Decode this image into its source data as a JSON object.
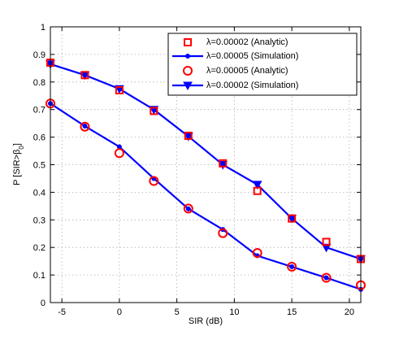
{
  "chart_data": {
    "type": "line",
    "xlabel": "SIR (dB)",
    "ylabel": "P [SIR>β₀]",
    "xlim": [
      -6,
      21
    ],
    "ylim": [
      0,
      1
    ],
    "x_ticks": [
      -5,
      0,
      5,
      10,
      15,
      20
    ],
    "y_ticks": [
      0,
      0.1,
      0.2,
      0.3,
      0.4,
      0.5,
      0.6,
      0.7,
      0.8,
      0.9,
      1
    ],
    "grid": true,
    "legend_position": "top-right",
    "series": [
      {
        "name": "λ=0.00002 (Analytic)",
        "style": "square-markers",
        "color": "#ff0000",
        "x": [
          -6,
          -3,
          0,
          3,
          6,
          9,
          12,
          15,
          18,
          21
        ],
        "y": [
          0.87,
          0.825,
          0.77,
          0.695,
          0.605,
          0.505,
          0.405,
          0.305,
          0.22,
          0.158
        ]
      },
      {
        "name": "λ=0.00005 (Simulation)",
        "style": "line-dot",
        "color": "#0000ff",
        "x": [
          -6,
          -3,
          0,
          3,
          6,
          9,
          12,
          15,
          18,
          21
        ],
        "y": [
          0.722,
          0.64,
          0.565,
          0.45,
          0.34,
          0.265,
          0.17,
          0.13,
          0.09,
          0.048
        ]
      },
      {
        "name": "λ=0.00005 (Analytic)",
        "style": "circle-markers",
        "color": "#ff0000",
        "x": [
          -6,
          -3,
          0,
          3,
          6,
          9,
          12,
          15,
          18,
          21
        ],
        "y": [
          0.722,
          0.638,
          0.542,
          0.441,
          0.341,
          0.252,
          0.18,
          0.13,
          0.09,
          0.063
        ]
      },
      {
        "name": "λ=0.00002 (Simulation)",
        "style": "line-triangle",
        "color": "#0000ff",
        "x": [
          -6,
          -3,
          0,
          3,
          6,
          9,
          12,
          15,
          18,
          21
        ],
        "y": [
          0.865,
          0.825,
          0.775,
          0.7,
          0.603,
          0.5,
          0.428,
          0.305,
          0.2,
          0.158
        ]
      }
    ]
  }
}
